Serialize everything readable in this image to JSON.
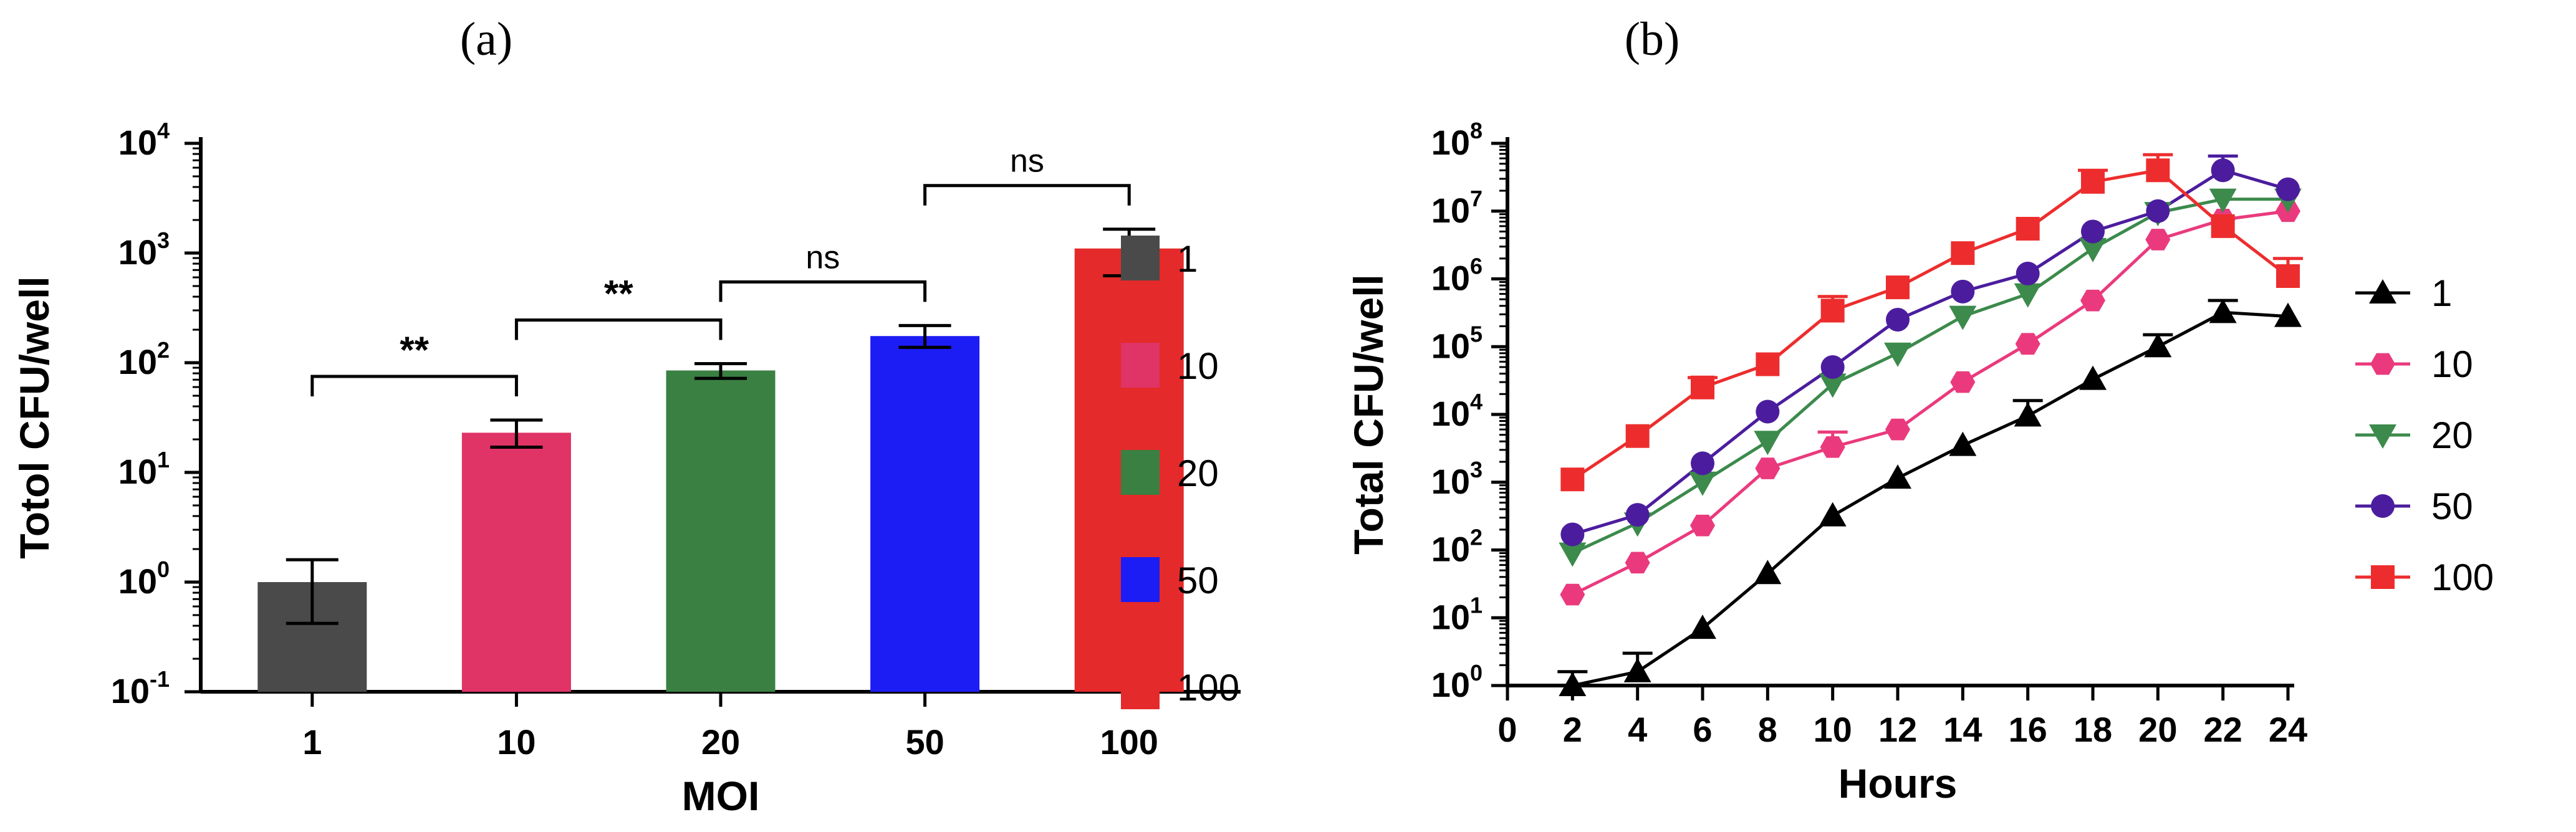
{
  "panel_labels": {
    "a": "(a)",
    "b": "(b)"
  },
  "chart_data": [
    {
      "type": "bar",
      "panel": "(a)",
      "title": "",
      "xlabel": "MOI",
      "ylabel": "Totol CFU/well",
      "yscale": "log",
      "ylim": [
        0.1,
        10000
      ],
      "ytick_exponents": [
        "-1",
        "0",
        "1",
        "2",
        "3",
        "4"
      ],
      "categories": [
        "1",
        "10",
        "20",
        "50",
        "100"
      ],
      "values": [
        1.0,
        23,
        85,
        175,
        1100
      ],
      "error_low": [
        0.42,
        17,
        72,
        138,
        620
      ],
      "error_high": [
        1.6,
        30,
        98,
        218,
        1650
      ],
      "colors": [
        "#4a4a4a",
        "#e03366",
        "#3a8042",
        "#1c1cf4",
        "#e42a2a"
      ],
      "legend": [
        "1",
        "10",
        "20",
        "50",
        "100"
      ],
      "legend_position": "right",
      "annotations": [
        {
          "from": "1",
          "to": "10",
          "label": "**"
        },
        {
          "from": "10",
          "to": "20",
          "label": "**"
        },
        {
          "from": "20",
          "to": "50",
          "label": "ns"
        },
        {
          "from": "50",
          "to": "100",
          "label": "ns"
        }
      ]
    },
    {
      "type": "line",
      "panel": "(b)",
      "title": "",
      "xlabel": "Hours",
      "ylabel": "Total CFU/well",
      "yscale": "log",
      "xlim": [
        0,
        24
      ],
      "ylim": [
        1,
        100000000
      ],
      "xticks": [
        "0",
        "2",
        "4",
        "6",
        "8",
        "10",
        "12",
        "14",
        "16",
        "18",
        "20",
        "22",
        "24"
      ],
      "ytick_exponents": [
        "0",
        "1",
        "2",
        "3",
        "4",
        "5",
        "6",
        "7",
        "8"
      ],
      "x": [
        2,
        4,
        6,
        8,
        10,
        12,
        14,
        16,
        18,
        20,
        22,
        24
      ],
      "series": [
        {
          "name": "1",
          "color": "#000000",
          "marker": "triangle-up",
          "values": [
            1,
            1.6,
            7,
            45,
            320,
            1150,
            3500,
            9500,
            33000,
            100000,
            320000,
            280000
          ],
          "errors": [
            1.6,
            3,
            0,
            0,
            0,
            0,
            0,
            16000,
            0,
            150000,
            480000,
            0
          ]
        },
        {
          "name": "10",
          "color": "#ea3a7d",
          "marker": "hexagon",
          "values": [
            22,
            65,
            230,
            1600,
            3300,
            6000,
            30000,
            110000,
            480000,
            3800000,
            7500000,
            10000000
          ],
          "errors": [
            0,
            0,
            0,
            0,
            5500,
            0,
            0,
            0,
            0,
            0,
            0,
            0
          ]
        },
        {
          "name": "20",
          "color": "#3c8a4c",
          "marker": "triangle-down",
          "values": [
            90,
            250,
            1000,
            4000,
            28000,
            80000,
            280000,
            600000,
            2800000,
            9500000,
            15000000,
            15000000
          ],
          "errors": [
            0,
            0,
            0,
            0,
            0,
            0,
            0,
            0,
            0,
            0,
            0,
            0
          ]
        },
        {
          "name": "50",
          "color": "#4b1d9e",
          "marker": "circle",
          "values": [
            170,
            330,
            1900,
            11000,
            50000,
            250000,
            650000,
            1200000,
            5000000,
            10000000,
            40000000,
            21000000
          ],
          "errors": [
            0,
            0,
            0,
            0,
            0,
            0,
            0,
            0,
            0,
            0,
            65000000,
            0
          ]
        },
        {
          "name": "100",
          "color": "#ed2d2d",
          "marker": "square",
          "values": [
            1100,
            4800,
            25000,
            55000,
            340000,
            750000,
            2400000,
            5500000,
            27000000,
            40000000,
            6000000,
            1100000
          ],
          "errors": [
            0,
            0,
            35000,
            0,
            550000,
            0,
            0,
            0,
            40000000,
            68000000,
            0,
            2000000
          ]
        }
      ],
      "legend_position": "right"
    }
  ]
}
